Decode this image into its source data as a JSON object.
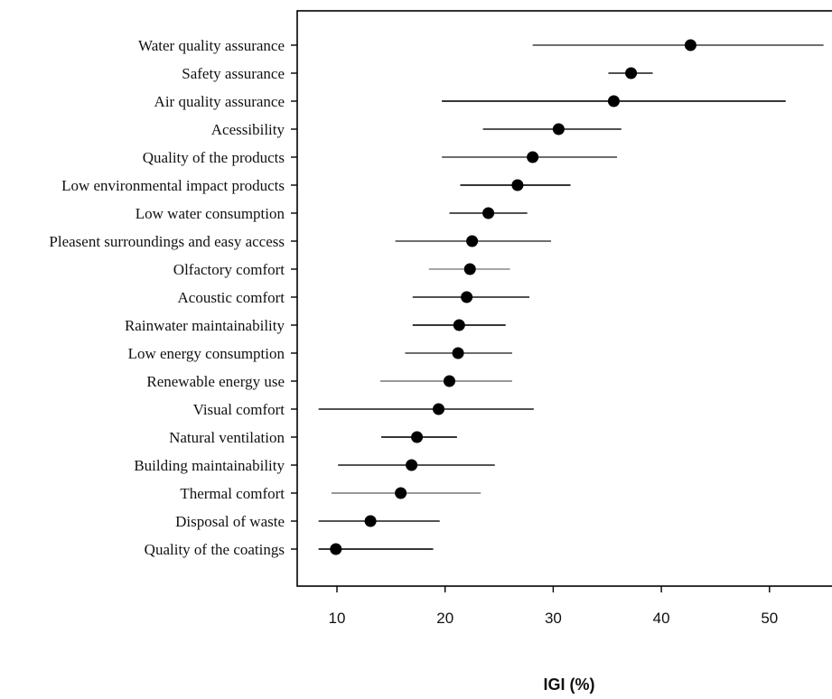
{
  "chart_data": {
    "type": "scatter",
    "title": "",
    "xlabel": "IGI (%)",
    "ylabel": "",
    "xlim": [
      8,
      55
    ],
    "xticks": [
      10,
      20,
      30,
      40,
      50
    ],
    "grid": false,
    "legend": "none",
    "marker_color": "#000000",
    "categories": [
      "Water quality assurance",
      "Safety assurance",
      "Air quality assurance",
      "Acessibility",
      "Quality of the products",
      "Low environmental impact products",
      "Low water consumption",
      "Pleasent surroundings and easy access",
      "Olfactory comfort",
      "Acoustic comfort",
      "Rainwater maintainability",
      "Low energy consumption",
      "Renewable energy use",
      "Visual comfort",
      "Natural ventilation",
      "Building maintainability",
      "Thermal comfort",
      "Disposal of waste",
      "Quality of the coatings"
    ],
    "values": [
      42.7,
      37.2,
      35.6,
      30.5,
      28.1,
      26.7,
      24.0,
      22.5,
      22.3,
      22.0,
      21.3,
      21.2,
      20.4,
      19.4,
      17.4,
      16.9,
      15.9,
      13.1,
      9.9
    ],
    "lower": [
      28.1,
      35.1,
      19.7,
      23.5,
      19.7,
      21.4,
      20.4,
      15.4,
      18.5,
      17.0,
      17.0,
      16.3,
      14.0,
      8.3,
      14.1,
      10.1,
      9.5,
      8.3,
      8.3
    ],
    "upper": [
      55.0,
      39.2,
      51.5,
      36.3,
      35.9,
      31.6,
      27.6,
      29.8,
      26.0,
      27.8,
      25.6,
      26.2,
      26.2,
      28.2,
      21.1,
      24.6,
      23.3,
      19.5,
      18.9
    ],
    "bar_colors": [
      "#5a5a5a",
      "#3a3a3a",
      "#1a1a1a",
      "#3a3a3a",
      "#5a5a5a",
      "#1a1a1a",
      "#3a3a3a",
      "#5a5a5a",
      "#9a9a9a",
      "#3a3a3a",
      "#1a1a1a",
      "#5a5a5a",
      "#8a8a8a",
      "#3a3a3a",
      "#1a1a1a",
      "#3a3a3a",
      "#8a8a8a",
      "#3a3a3a",
      "#1a1a1a"
    ]
  }
}
